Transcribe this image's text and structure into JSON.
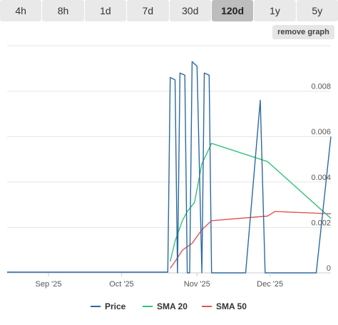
{
  "tabs": [
    {
      "label": "4h"
    },
    {
      "label": "8h"
    },
    {
      "label": "1d"
    },
    {
      "label": "7d"
    },
    {
      "label": "30d"
    },
    {
      "label": "120d"
    },
    {
      "label": "1y"
    },
    {
      "label": "5y"
    }
  ],
  "active_tab": "120d",
  "remove_graph_label": "remove graph",
  "chart_data": {
    "type": "line",
    "x_range": [
      "2025-08-15",
      "2025-12-26"
    ],
    "x_ticks": [
      {
        "date": "2025-09-01",
        "label": "Sep '25"
      },
      {
        "date": "2025-10-01",
        "label": "Oct '25"
      },
      {
        "date": "2025-11-01",
        "label": "Nov '25"
      },
      {
        "date": "2025-12-01",
        "label": "Dec '25"
      }
    ],
    "y_ticks": [
      {
        "value": 0,
        "label": "0"
      },
      {
        "value": 0.002,
        "label": "0.002"
      },
      {
        "value": 0.004,
        "label": "0.004"
      },
      {
        "value": 0.006,
        "label": "0.006"
      },
      {
        "value": 0.008,
        "label": "0.008"
      }
    ],
    "ylim": [
      0,
      0.01
    ],
    "grid": true,
    "legend_position": "bottom",
    "series": [
      {
        "name": "Price",
        "color": "#2b6aa3",
        "points": [
          [
            "2025-08-15",
            3e-05
          ],
          [
            "2025-10-20",
            3e-05
          ],
          [
            "2025-10-21",
            0.0086
          ],
          [
            "2025-10-23",
            0.0085
          ],
          [
            "2025-10-24",
            0.0
          ],
          [
            "2025-10-25",
            0.0088
          ],
          [
            "2025-10-27",
            0.0087
          ],
          [
            "2025-10-28",
            0.0
          ],
          [
            "2025-10-29",
            0.0
          ],
          [
            "2025-10-30",
            0.0093
          ],
          [
            "2025-11-01",
            0.0091
          ],
          [
            "2025-11-03",
            0.0
          ],
          [
            "2025-11-04",
            0.0088
          ],
          [
            "2025-11-06",
            0.0087
          ],
          [
            "2025-11-07",
            0.0
          ],
          [
            "2025-11-21",
            0.0
          ],
          [
            "2025-11-27",
            0.0076
          ],
          [
            "2025-11-29",
            0.0
          ],
          [
            "2025-12-20",
            0.0
          ],
          [
            "2025-12-26",
            0.006
          ]
        ]
      },
      {
        "name": "SMA 20",
        "color": "#34c27a",
        "points": [
          [
            "2025-10-21",
            0.0005
          ],
          [
            "2025-10-23",
            0.0014
          ],
          [
            "2025-10-26",
            0.0023
          ],
          [
            "2025-10-28",
            0.0027
          ],
          [
            "2025-10-31",
            0.0031
          ],
          [
            "2025-11-03",
            0.0048
          ],
          [
            "2025-11-07",
            0.0057
          ],
          [
            "2025-11-30",
            0.0049
          ],
          [
            "2025-12-26",
            0.0024
          ]
        ]
      },
      {
        "name": "SMA 50",
        "color": "#e05555",
        "points": [
          [
            "2025-10-21",
            0.0002
          ],
          [
            "2025-10-23",
            0.0005
          ],
          [
            "2025-10-26",
            0.001
          ],
          [
            "2025-10-30",
            0.0013
          ],
          [
            "2025-11-03",
            0.0019
          ],
          [
            "2025-11-07",
            0.0023
          ],
          [
            "2025-11-30",
            0.0025
          ],
          [
            "2025-12-03",
            0.0027
          ],
          [
            "2025-12-26",
            0.0026
          ]
        ]
      }
    ]
  }
}
